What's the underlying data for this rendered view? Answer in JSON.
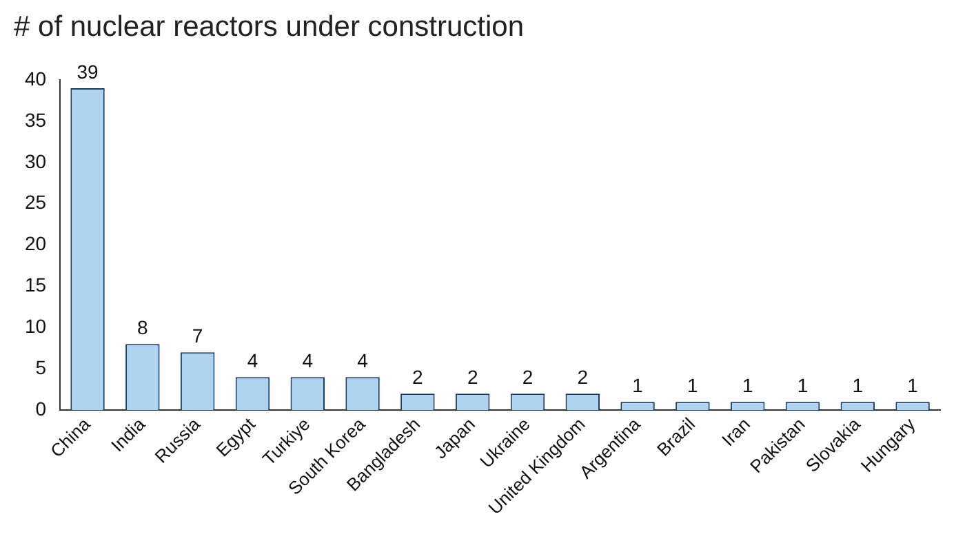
{
  "chart_data": {
    "type": "bar",
    "title": "# of nuclear reactors under construction",
    "categories": [
      "China",
      "India",
      "Russia",
      "Egypt",
      "Turkiye",
      "South Korea",
      "Bangladesh",
      "Japan",
      "Ukraine",
      "United Kingdom",
      "Argentina",
      "Brazil",
      "Iran",
      "Pakistan",
      "Slovakia",
      "Hungary"
    ],
    "values": [
      39,
      8,
      7,
      4,
      4,
      4,
      2,
      2,
      2,
      2,
      1,
      1,
      1,
      1,
      1,
      1
    ],
    "color": "#aed4f0",
    "ylim": [
      0,
      40
    ],
    "yticks": [
      0,
      5,
      10,
      15,
      20,
      25,
      30,
      35,
      40
    ],
    "grid": false,
    "legend": false,
    "data_labels": true
  }
}
